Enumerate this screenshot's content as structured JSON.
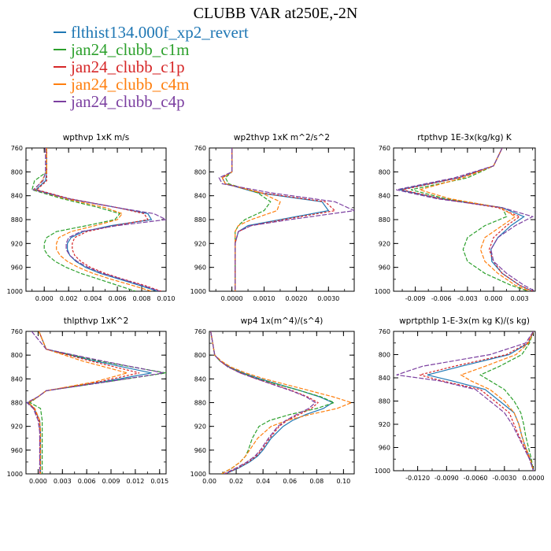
{
  "figure": {
    "title": "CLUBB VAR at250E,-2N",
    "legend": [
      {
        "label": "flthist134.000f_xp2_revert",
        "color": "#1f77b4"
      },
      {
        "label": "jan24_clubb_c1m",
        "color": "#2ca02c"
      },
      {
        "label": "jan24_clubb_c1p",
        "color": "#d62728"
      },
      {
        "label": "jan24_clubb_c4m",
        "color": "#ff7f0e"
      },
      {
        "label": "jan24_clubb_c4p",
        "color": "#7b3fa0"
      }
    ]
  },
  "chart_data": [
    {
      "type": "line",
      "title": "wpthvp  1xK m/s",
      "xlim": [
        -0.0015,
        0.01
      ],
      "xticks": [
        0.0,
        0.002,
        0.004,
        0.006,
        0.008,
        0.01
      ],
      "xtick_labels": [
        "0.000",
        "0.002",
        "0.004",
        "0.006",
        "0.008",
        "0.010"
      ],
      "ylim": [
        760,
        1000
      ],
      "yticks": [
        760,
        800,
        840,
        880,
        920,
        960,
        1000
      ],
      "ytick_labels": [
        "760",
        "800",
        "840",
        "880",
        "920",
        "960",
        "1000"
      ],
      "y": [
        760,
        800,
        815,
        830,
        845,
        860,
        870,
        880,
        890,
        900,
        910,
        920,
        930,
        940,
        950,
        960,
        970,
        980,
        990,
        1000
      ],
      "series": [
        {
          "name": "flthist134.000f_xp2_revert",
          "color": "#1f77b4",
          "values": [
            0.0002,
            0.0002,
            0.0001,
            -0.0007,
            0.002,
            0.006,
            0.0085,
            0.0088,
            0.0055,
            0.0032,
            0.0022,
            0.0019,
            0.0019,
            0.0021,
            0.0026,
            0.0034,
            0.0046,
            0.0062,
            0.0078,
            0.0093
          ]
        },
        {
          "name": "jan24_clubb_c1m",
          "color": "#2ca02c",
          "values": [
            0.0002,
            0.0002,
            -0.0008,
            -0.001,
            0.0015,
            0.0045,
            0.0062,
            0.0058,
            0.0035,
            0.001,
            0.0002,
            0.0,
            0.0,
            0.0003,
            0.0009,
            0.0018,
            0.003,
            0.0045,
            0.006,
            0.0075
          ]
        },
        {
          "name": "jan24_clubb_c1p",
          "color": "#d62728",
          "values": [
            0.0002,
            0.0002,
            0.0002,
            -0.0006,
            0.0021,
            0.006,
            0.0082,
            0.0085,
            0.0058,
            0.0035,
            0.0025,
            0.0023,
            0.0023,
            0.0025,
            0.003,
            0.0038,
            0.005,
            0.0065,
            0.0082,
            0.0096
          ]
        },
        {
          "name": "jan24_clubb_c4m",
          "color": "#ff7f0e",
          "values": [
            0.0002,
            0.0002,
            -0.0002,
            -0.0008,
            0.0018,
            0.005,
            0.0064,
            0.006,
            0.0042,
            0.0022,
            0.0012,
            0.001,
            0.001,
            0.0013,
            0.0019,
            0.0028,
            0.004,
            0.0055,
            0.0072,
            0.0088
          ]
        },
        {
          "name": "jan24_clubb_c4p",
          "color": "#7b3fa0",
          "values": [
            0.0001,
            0.0001,
            -0.0001,
            -0.0009,
            0.002,
            0.006,
            0.009,
            0.01,
            0.006,
            0.003,
            0.002,
            0.0018,
            0.0018,
            0.0021,
            0.0027,
            0.0036,
            0.0048,
            0.0064,
            0.008,
            0.0095
          ]
        }
      ]
    },
    {
      "type": "line",
      "title": "wp2thvp  1xK m^2/s^2",
      "xlim": [
        -0.0007,
        0.0038
      ],
      "xticks": [
        0.0,
        0.001,
        0.002,
        0.003
      ],
      "xtick_labels": [
        "0.0000",
        "0.0010",
        "0.0020",
        "0.0030"
      ],
      "ylim": [
        760,
        1000
      ],
      "yticks": [
        760,
        800,
        840,
        880,
        920,
        960,
        1000
      ],
      "ytick_labels": [
        "760",
        "800",
        "840",
        "880",
        "920",
        "960",
        "1000"
      ],
      "y": [
        760,
        800,
        810,
        820,
        835,
        850,
        865,
        880,
        890,
        900,
        920,
        940,
        960,
        980,
        1000
      ],
      "series": [
        {
          "name": "flthist134.000f_xp2_revert",
          "color": "#1f77b4",
          "values": [
            0.0,
            0.0,
            -0.0003,
            -0.0002,
            0.0008,
            0.0028,
            0.003,
            0.0015,
            0.0005,
            0.0002,
            0.0001,
            0.0001,
            0.0001,
            0.0001,
            0.0001
          ]
        },
        {
          "name": "jan24_clubb_c1m",
          "color": "#2ca02c",
          "values": [
            0.0,
            0.0,
            -0.0002,
            -0.0001,
            0.0008,
            0.0012,
            0.001,
            0.0004,
            0.0002,
            0.0001,
            0.0001,
            0.0001,
            0.0001,
            0.0001,
            0.0001
          ]
        },
        {
          "name": "jan24_clubb_c1p",
          "color": "#d62728",
          "values": [
            0.0,
            0.0,
            -0.0003,
            -0.0002,
            0.0009,
            0.0029,
            0.0032,
            0.0016,
            0.0006,
            0.0002,
            0.0001,
            0.0001,
            0.0001,
            0.0001,
            0.0001
          ]
        },
        {
          "name": "jan24_clubb_c4m",
          "color": "#ff7f0e",
          "values": [
            0.0,
            0.0,
            -0.0003,
            -0.0002,
            0.0009,
            0.0015,
            0.0014,
            0.0006,
            0.0002,
            0.0001,
            0.0001,
            0.0001,
            0.0001,
            0.0001,
            0.0001
          ]
        },
        {
          "name": "jan24_clubb_c4p",
          "color": "#7b3fa0",
          "values": [
            0.0,
            0.0,
            -0.0004,
            -0.0003,
            0.0012,
            0.0032,
            0.0038,
            0.0018,
            0.0006,
            0.0002,
            0.0001,
            0.0001,
            0.0001,
            0.0001,
            0.0001
          ]
        }
      ]
    },
    {
      "type": "line",
      "title": "rtpthvp  1E-3x(kg/kg) K",
      "xlim": [
        -0.0115,
        0.0048
      ],
      "xticks": [
        -0.009,
        -0.006,
        -0.003,
        0.0,
        0.003
      ],
      "xtick_labels": [
        "-0.009",
        "-0.006",
        "-0.003",
        "0.000",
        "0.003"
      ],
      "ylim": [
        760,
        1000
      ],
      "yticks": [
        760,
        800,
        840,
        880,
        920,
        960,
        1000
      ],
      "ytick_labels": [
        "760",
        "800",
        "840",
        "880",
        "920",
        "960",
        "1000"
      ],
      "y": [
        760,
        790,
        810,
        830,
        845,
        860,
        875,
        890,
        910,
        930,
        950,
        970,
        990,
        1000
      ],
      "series": [
        {
          "name": "flthist134.000f_xp2_revert",
          "color": "#1f77b4",
          "values": [
            0.001,
            0.0,
            -0.004,
            -0.0108,
            -0.006,
            0.001,
            0.0035,
            0.002,
            0.0005,
            -0.0003,
            -0.0002,
            0.001,
            0.003,
            0.0045
          ]
        },
        {
          "name": "jan24_clubb_c1m",
          "color": "#2ca02c",
          "values": [
            0.001,
            0.0,
            -0.003,
            -0.0095,
            -0.0055,
            0.001,
            0.0015,
            -0.001,
            -0.003,
            -0.0035,
            -0.003,
            -0.001,
            0.002,
            0.004
          ]
        },
        {
          "name": "jan24_clubb_c1p",
          "color": "#d62728",
          "values": [
            0.001,
            0.0,
            -0.004,
            -0.0105,
            -0.006,
            0.0005,
            0.003,
            0.0015,
            0.0,
            -0.0005,
            0.0,
            0.001,
            0.003,
            0.0045
          ]
        },
        {
          "name": "jan24_clubb_c4m",
          "color": "#ff7f0e",
          "values": [
            0.001,
            0.0,
            -0.0035,
            -0.0085,
            -0.005,
            0.0008,
            0.0025,
            0.001,
            -0.001,
            -0.0015,
            -0.001,
            0.0005,
            0.0025,
            0.0042
          ]
        },
        {
          "name": "jan24_clubb_c4p",
          "color": "#7b3fa0",
          "values": [
            0.001,
            0.0,
            -0.0045,
            -0.0112,
            -0.0065,
            0.001,
            0.0045,
            0.0025,
            0.0005,
            -0.0003,
            0.0,
            0.0015,
            0.0035,
            0.0048
          ]
        }
      ]
    },
    {
      "type": "line",
      "title": "thlpthvp  1xK^2",
      "xlim": [
        -0.0015,
        0.0158
      ],
      "xticks": [
        0.0,
        0.003,
        0.006,
        0.009,
        0.012,
        0.015
      ],
      "xtick_labels": [
        "0.000",
        "0.003",
        "0.006",
        "0.009",
        "0.012",
        "0.015"
      ],
      "ylim": [
        760,
        1000
      ],
      "yticks": [
        760,
        800,
        840,
        880,
        920,
        960,
        1000
      ],
      "ytick_labels": [
        "760",
        "800",
        "840",
        "880",
        "920",
        "960",
        "1000"
      ],
      "y": [
        760,
        790,
        810,
        830,
        845,
        860,
        870,
        880,
        890,
        910,
        930,
        950,
        970,
        990,
        1000
      ],
      "series": [
        {
          "name": "flthist134.000f_xp2_revert",
          "color": "#1f77b4",
          "values": [
            0.0001,
            0.001,
            0.007,
            0.014,
            0.008,
            0.001,
            0.0,
            -0.0013,
            -0.0005,
            0.0002,
            0.0003,
            0.0003,
            0.0003,
            0.0003,
            0.0003
          ]
        },
        {
          "name": "jan24_clubb_c1m",
          "color": "#2ca02c",
          "values": [
            0.0001,
            0.001,
            0.0075,
            0.0158,
            0.0085,
            0.001,
            0.0,
            -0.001,
            0.0003,
            0.0005,
            0.0005,
            0.0005,
            0.0005,
            0.0005,
            0.0005
          ]
        },
        {
          "name": "jan24_clubb_c1p",
          "color": "#d62728",
          "values": [
            0.0001,
            0.001,
            0.0065,
            0.0125,
            0.0075,
            0.001,
            0.0,
            -0.0012,
            -0.0005,
            0.0001,
            0.0002,
            0.0002,
            0.0002,
            0.0002,
            0.0002
          ]
        },
        {
          "name": "jan24_clubb_c4m",
          "color": "#ff7f0e",
          "values": [
            0.0001,
            0.001,
            0.0055,
            0.011,
            0.007,
            0.001,
            0.0,
            -0.0012,
            -0.0004,
            0.0002,
            0.0003,
            0.0003,
            0.0003,
            0.0003,
            0.0003
          ]
        },
        {
          "name": "jan24_clubb_c4p",
          "color": "#7b3fa0",
          "values": [
            -0.0008,
            0.001,
            0.008,
            0.0155,
            0.0085,
            0.001,
            0.0,
            -0.0014,
            -0.0006,
            0.0,
            0.0002,
            0.0002,
            0.0002,
            0.0002,
            0.0002
          ]
        }
      ]
    },
    {
      "type": "line",
      "title": "wp4  1x(m^4)/(s^4)",
      "xlim": [
        0.0,
        0.108
      ],
      "xticks": [
        0.0,
        0.02,
        0.04,
        0.06,
        0.08,
        0.1
      ],
      "xtick_labels": [
        "0.00",
        "0.02",
        "0.04",
        "0.06",
        "0.08",
        "0.10"
      ],
      "ylim": [
        760,
        1000
      ],
      "yticks": [
        760,
        800,
        840,
        880,
        920,
        960,
        1000
      ],
      "ytick_labels": [
        "760",
        "800",
        "840",
        "880",
        "920",
        "960",
        "1000"
      ],
      "y": [
        760,
        800,
        810,
        820,
        830,
        840,
        850,
        860,
        870,
        880,
        890,
        900,
        910,
        920,
        940,
        960,
        970,
        980,
        990,
        1000
      ],
      "series": [
        {
          "name": "flthist134.000f_xp2_revert",
          "color": "#1f77b4",
          "values": [
            0.001,
            0.004,
            0.008,
            0.015,
            0.025,
            0.038,
            0.053,
            0.068,
            0.082,
            0.092,
            0.085,
            0.072,
            0.062,
            0.055,
            0.046,
            0.04,
            0.036,
            0.03,
            0.022,
            0.012
          ]
        },
        {
          "name": "jan24_clubb_c1m",
          "color": "#2ca02c",
          "values": [
            0.001,
            0.004,
            0.008,
            0.014,
            0.024,
            0.036,
            0.052,
            0.068,
            0.083,
            0.093,
            0.08,
            0.06,
            0.045,
            0.037,
            0.032,
            0.029,
            0.027,
            0.023,
            0.017,
            0.009
          ]
        },
        {
          "name": "jan24_clubb_c1p",
          "color": "#d62728",
          "values": [
            0.001,
            0.004,
            0.008,
            0.014,
            0.023,
            0.035,
            0.049,
            0.062,
            0.073,
            0.081,
            0.076,
            0.067,
            0.058,
            0.052,
            0.045,
            0.039,
            0.035,
            0.029,
            0.021,
            0.012
          ]
        },
        {
          "name": "jan24_clubb_c4m",
          "color": "#ff7f0e",
          "values": [
            0.001,
            0.004,
            0.009,
            0.016,
            0.027,
            0.041,
            0.058,
            0.075,
            0.092,
            0.106,
            0.095,
            0.075,
            0.058,
            0.046,
            0.036,
            0.03,
            0.027,
            0.023,
            0.017,
            0.009
          ]
        },
        {
          "name": "jan24_clubb_c4p",
          "color": "#7b3fa0",
          "values": [
            0.001,
            0.004,
            0.008,
            0.014,
            0.023,
            0.035,
            0.048,
            0.061,
            0.072,
            0.079,
            0.074,
            0.065,
            0.057,
            0.051,
            0.044,
            0.038,
            0.034,
            0.028,
            0.02,
            0.011
          ]
        }
      ]
    },
    {
      "type": "line",
      "title": "wprtpthlp  1-E-3x(m kg K)/(s kg)",
      "xlim": [
        -0.0145,
        0.0002
      ],
      "xticks": [
        -0.012,
        -0.009,
        -0.006,
        -0.003,
        0.0
      ],
      "xtick_labels": [
        "-0.0120",
        "-0.0090",
        "-0.0060",
        "-0.0030",
        "0.0000"
      ],
      "ylim": [
        760,
        1000
      ],
      "yticks": [
        760,
        800,
        840,
        880,
        920,
        960,
        1000
      ],
      "ytick_labels": [
        "760",
        "800",
        "840",
        "880",
        "920",
        "960",
        "1000"
      ],
      "y": [
        760,
        780,
        800,
        820,
        835,
        845,
        860,
        880,
        900,
        920,
        940,
        960,
        980,
        1000
      ],
      "series": [
        {
          "name": "flthist134.000f_xp2_revert",
          "color": "#1f77b4",
          "values": [
            0.0,
            -0.0005,
            -0.0025,
            -0.0075,
            -0.011,
            -0.0085,
            -0.005,
            -0.0035,
            -0.002,
            -0.0015,
            -0.0012,
            -0.0008,
            -0.0003,
            0.0
          ]
        },
        {
          "name": "jan24_clubb_c1m",
          "color": "#2ca02c",
          "values": [
            0.0,
            -0.0004,
            -0.0012,
            -0.0035,
            -0.0055,
            -0.0045,
            -0.003,
            -0.002,
            -0.0013,
            -0.001,
            -0.0008,
            -0.0005,
            -0.0002,
            0.0
          ]
        },
        {
          "name": "jan24_clubb_c1p",
          "color": "#d62728",
          "values": [
            0.0,
            -0.0006,
            -0.0028,
            -0.0082,
            -0.0118,
            -0.0095,
            -0.0055,
            -0.004,
            -0.0025,
            -0.002,
            -0.0015,
            -0.0009,
            -0.0004,
            0.0
          ]
        },
        {
          "name": "jan24_clubb_c4m",
          "color": "#ff7f0e",
          "values": [
            0.0,
            -0.0005,
            -0.0018,
            -0.005,
            -0.0075,
            -0.0065,
            -0.0045,
            -0.003,
            -0.002,
            -0.0015,
            -0.0012,
            -0.0008,
            -0.0003,
            0.0
          ]
        },
        {
          "name": "jan24_clubb_c4p",
          "color": "#7b3fa0",
          "values": [
            0.0,
            -0.0008,
            -0.0045,
            -0.0115,
            -0.0142,
            -0.0098,
            -0.006,
            -0.0045,
            -0.003,
            -0.0022,
            -0.0016,
            -0.001,
            -0.0004,
            0.0
          ]
        }
      ]
    }
  ]
}
